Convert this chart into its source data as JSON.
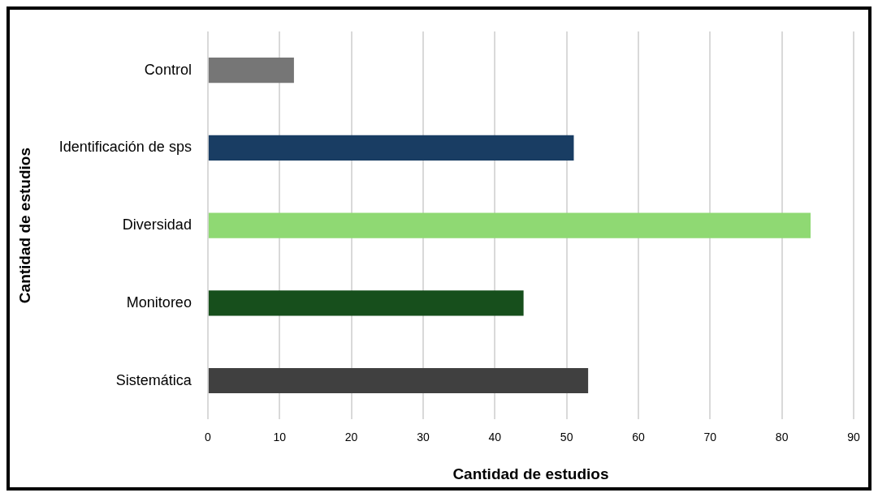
{
  "chart_data": {
    "type": "bar",
    "orientation": "horizontal",
    "categories": [
      "Control",
      "Identificación de sps",
      "Diversidad",
      "Monitoreo",
      "Sistemática"
    ],
    "values": [
      12,
      51,
      84,
      44,
      53
    ],
    "colors": [
      "#767676",
      "#193d63",
      "#8fd973",
      "#174f1c",
      "#404040"
    ],
    "xlabel": "Cantidad de estudios",
    "ylabel": "Cantidad de estudios",
    "xlim": [
      0,
      90
    ],
    "xticks": [
      0,
      10,
      20,
      30,
      40,
      50,
      60,
      70,
      80,
      90
    ],
    "grid": "x",
    "legend": false
  }
}
